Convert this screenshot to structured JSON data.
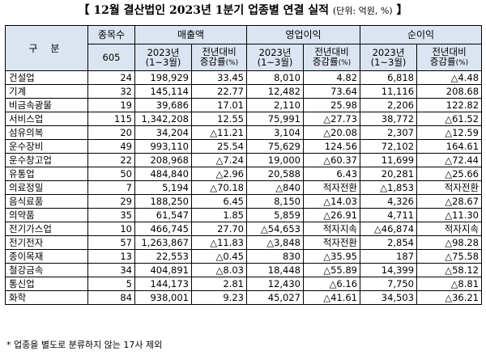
{
  "title": {
    "open_bracket": "【",
    "main": " 12월 결산법인 2023년 1분기 업종별 연결 실적 ",
    "unit": "(단위: 억원, %)",
    "close_bracket": " 】"
  },
  "header": {
    "gubun": "구 분",
    "company_count": "종목수",
    "company_total": "605",
    "groups": [
      "매출액",
      "영업이익",
      "순이익"
    ],
    "period_line1": "2023년",
    "period_line2": "(1~3월)",
    "yoy_line1": "전년대비",
    "yoy_line2": "증감률",
    "yoy_unit": "(%)"
  },
  "rows": [
    [
      "건설업",
      "24",
      "198,929",
      "33.45",
      "8,010",
      "4.82",
      "6,818",
      "△4.48"
    ],
    [
      "기계",
      "32",
      "145,114",
      "22.77",
      "12,482",
      "73.64",
      "11,116",
      "208.68"
    ],
    [
      "비금속광물",
      "19",
      "39,686",
      "17.01",
      "2,110",
      "25.98",
      "2,206",
      "122.82"
    ],
    [
      "서비스업",
      "115",
      "1,342,208",
      "12.55",
      "75,991",
      "△27.73",
      "38,772",
      "△61.52"
    ],
    [
      "섬유의복",
      "20",
      "34,204",
      "△11.21",
      "3,104",
      "△20.08",
      "2,307",
      "△12.59"
    ],
    [
      "운수장비",
      "49",
      "993,110",
      "25.54",
      "75,629",
      "124.56",
      "72,102",
      "164.61"
    ],
    [
      "운수창고업",
      "22",
      "208,968",
      "△7.24",
      "19,000",
      "△60.37",
      "11,699",
      "△72.44"
    ],
    [
      "유통업",
      "50",
      "484,840",
      "△2.96",
      "20,588",
      "6.43",
      "20,281",
      "△25.66"
    ],
    [
      "의료정밀",
      "7",
      "5,194",
      "△70.18",
      "△840",
      "적자전환",
      "△1,853",
      "적자전환"
    ],
    [
      "음식료품",
      "29",
      "188,250",
      "6.45",
      "8,150",
      "△14.03",
      "4,326",
      "△28.67"
    ],
    [
      "의약품",
      "35",
      "61,547",
      "1.85",
      "5,859",
      "△26.91",
      "4,711",
      "△11.30"
    ],
    [
      "전기가스업",
      "10",
      "466,745",
      "27.70",
      "△54,653",
      "적자지속",
      "△46,874",
      "적자지속"
    ],
    [
      "전기전자",
      "57",
      "1,263,867",
      "△11.83",
      "△3,848",
      "적자전환",
      "2,854",
      "△98.28"
    ],
    [
      "종이목재",
      "13",
      "22,553",
      "△0.45",
      "830",
      "△35.95",
      "187",
      "△75.58"
    ],
    [
      "철강금속",
      "34",
      "404,891",
      "△8.03",
      "18,448",
      "△55.89",
      "14,399",
      "△58.12"
    ],
    [
      "통신업",
      "5",
      "144,173",
      "2.81",
      "12,430",
      "△6.16",
      "7,750",
      "△8.81"
    ],
    [
      "화학",
      "84",
      "938,001",
      "9.23",
      "45,027",
      "△41.61",
      "34,503",
      "△36.21"
    ]
  ],
  "footnote": "* 업종을 별도로 분류하지 않는 17사 제외"
}
